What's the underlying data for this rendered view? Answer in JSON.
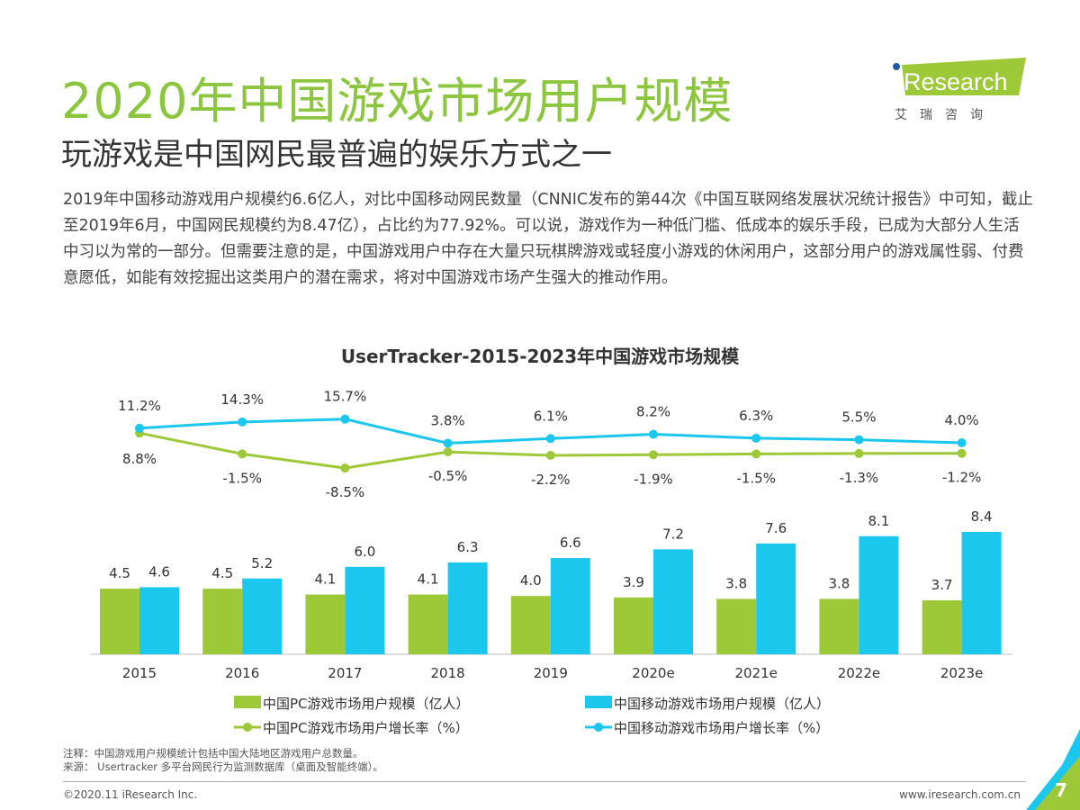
{
  "header": {
    "title": "2020年中国游戏市场用户规模",
    "subtitle": "玩游戏是中国网民最普遍的娱乐方式之一"
  },
  "logo": {
    "text": "iResearch",
    "cn": "艾 瑞 咨 询"
  },
  "paragraph": "2019年中国移动游戏用户规模约6.6亿人，对比中国移动网民数量（CNNIC发布的第44次《中国互联网络发展状况统计报告》中可知，截止至2019年6月，中国网民规模约为8.47亿），占比约为77.92%。可以说，游戏作为一种低门槛、低成本的娱乐手段，已成为大部分人生活中习以为常的一部分。但需要注意的是，中国游戏用户中存在大量只玩棋牌游戏或轻度小游戏的休闲用户，这部分用户的游戏属性弱、付费意愿低，如能有效挖掘出这类用户的潜在需求，将对中国游戏市场产生强大的推动作用。",
  "chart_data": {
    "type": "bar+line",
    "title": "UserTracker-2015-2023年中国游戏市场规模",
    "categories": [
      "2015",
      "2016",
      "2017",
      "2018",
      "2019",
      "2020e",
      "2021e",
      "2022e",
      "2023e"
    ],
    "series": [
      {
        "name": "中国PC游戏市场用户规模（亿人）",
        "type": "bar",
        "color": "#9dc938",
        "values": [
          4.5,
          4.5,
          4.1,
          4.1,
          4.0,
          3.9,
          3.8,
          3.8,
          3.7
        ]
      },
      {
        "name": "中国移动游戏市场用户规模（亿人）",
        "type": "bar",
        "color": "#1cc7ee",
        "values": [
          4.6,
          5.2,
          6.0,
          6.3,
          6.6,
          7.2,
          7.6,
          8.1,
          8.4
        ]
      },
      {
        "name": "中国PC游戏市场用户增长率（%）",
        "type": "line",
        "color": "#9dc938",
        "values": [
          8.8,
          -1.5,
          -8.5,
          -0.5,
          -2.2,
          -1.9,
          -1.5,
          -1.3,
          -1.2
        ]
      },
      {
        "name": "中国移动游戏市场用户增长率（%）",
        "type": "line",
        "color": "#1cc7ee",
        "values": [
          11.2,
          14.3,
          15.7,
          3.8,
          6.1,
          8.2,
          6.3,
          5.5,
          4.0
        ]
      }
    ],
    "legend": "bottom"
  },
  "footer": {
    "note": "注释：中国游戏用户规模统计包括中国大陆地区游戏用户总数量。",
    "source": "来源： Usertracker 多平台网民行为监测数据库（桌面及智能终端）。",
    "copyright": "©2020.11 iResearch Inc.",
    "url": "www.iresearch.com.cn",
    "page": "7"
  }
}
